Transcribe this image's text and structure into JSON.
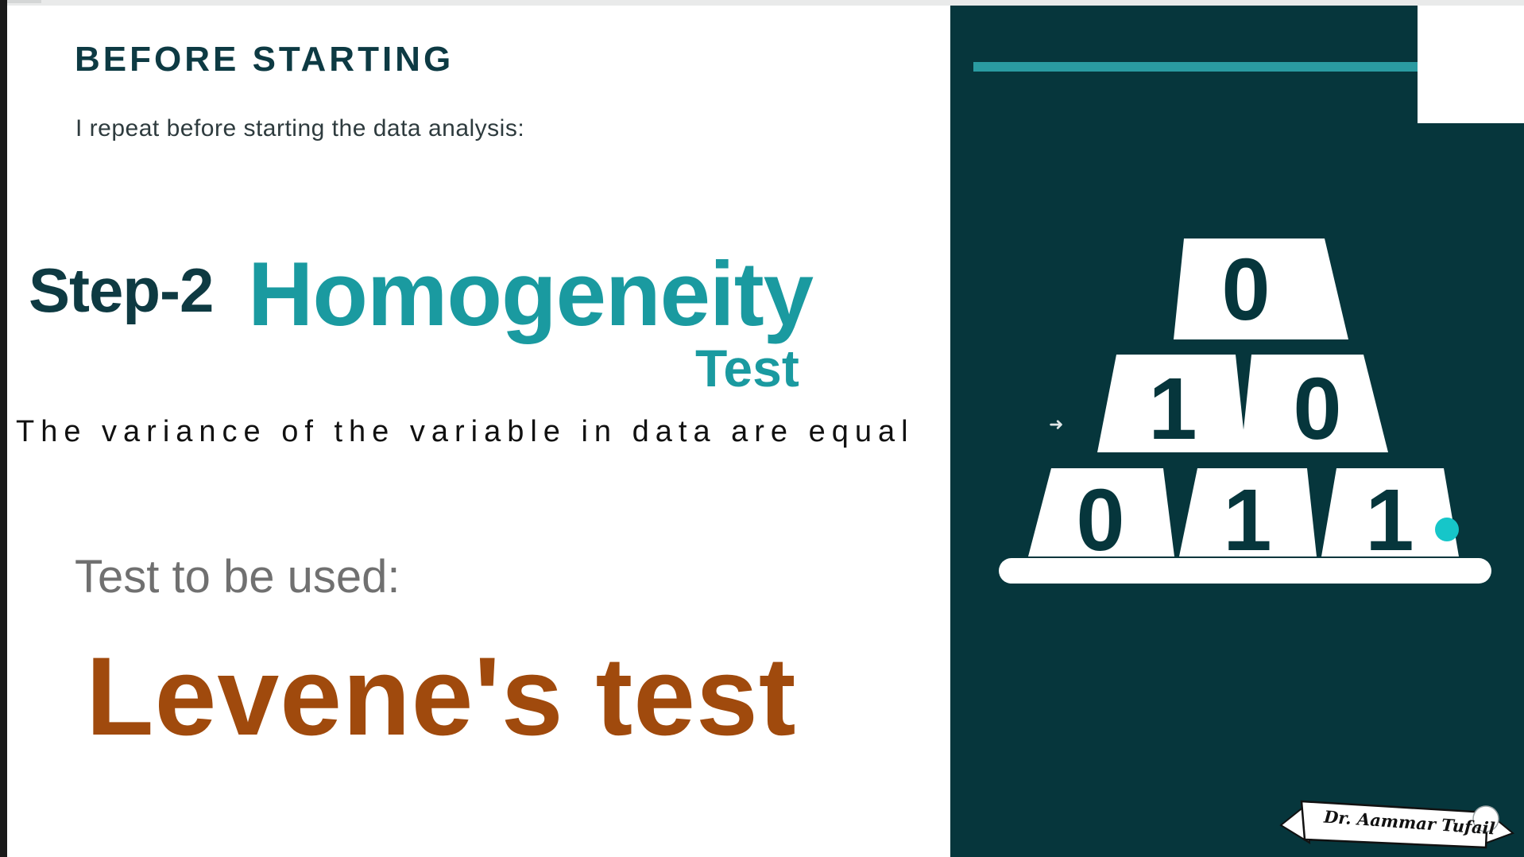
{
  "slide": {
    "heading": "BEFORE STARTING",
    "intro": "I repeat before starting the data analysis:",
    "step_label": "Step-2",
    "step_title": "Homogeneity",
    "step_title_suffix": "Test",
    "definition": "The variance of the variable in data are equal",
    "test_prompt": "Test to be used:",
    "test_name": "Levene's test"
  },
  "pyramid": {
    "rows": [
      [
        "0"
      ],
      [
        "1",
        "0"
      ],
      [
        "0",
        "1",
        "1"
      ]
    ]
  },
  "signature": {
    "text": "Dr. Aammar Tufail"
  },
  "colors": {
    "panel": "#06363c",
    "accent_teal": "#1a9aa0",
    "heading_dark": "#0d3a43",
    "test_brown": "#a04a0d",
    "pointer_cyan": "#16c6c9"
  },
  "icons": {
    "cursor": "arrow-cursor-icon",
    "pointer": "laser-pointer-dot"
  }
}
